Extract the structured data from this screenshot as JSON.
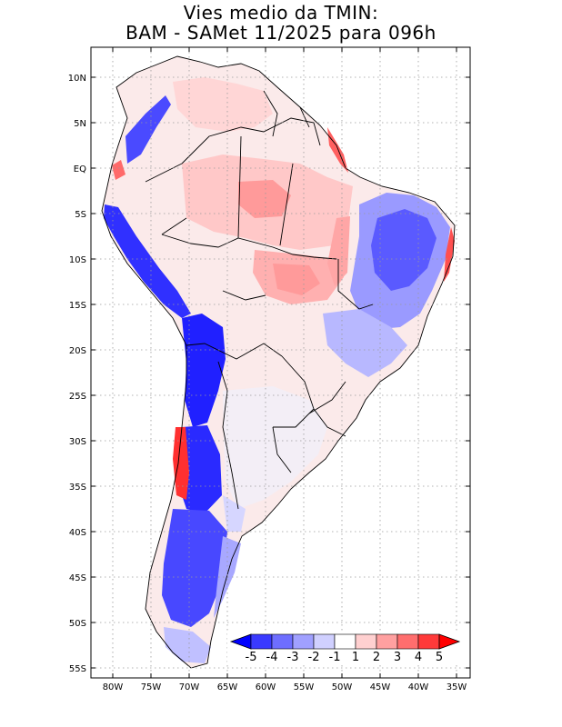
{
  "title": {
    "line1": "Vies medio da TMIN:",
    "line2": "BAM - SAMet 11/2025  para 096h"
  },
  "map": {
    "region": "South America",
    "lat_labels": [
      "10N",
      "5N",
      "EQ",
      "5S",
      "10S",
      "15S",
      "20S",
      "25S",
      "30S",
      "35S",
      "40S",
      "45S",
      "50S",
      "55S"
    ],
    "lon_labels": [
      "80W",
      "75W",
      "70W",
      "65W",
      "60W",
      "55W",
      "50W",
      "45W",
      "40W",
      "35W"
    ]
  },
  "colorbar": {
    "labels": [
      "-5",
      "-4",
      "-3",
      "-2",
      "-1",
      "1",
      "2",
      "3",
      "4",
      "5"
    ],
    "colors": [
      "#0000ff",
      "#3a3aff",
      "#6e6eff",
      "#a0a0ff",
      "#d0d0ff",
      "#ffffff",
      "#ffd0d0",
      "#ffa0a0",
      "#ff6e6e",
      "#ff3a3a",
      "#ff0000"
    ]
  }
}
